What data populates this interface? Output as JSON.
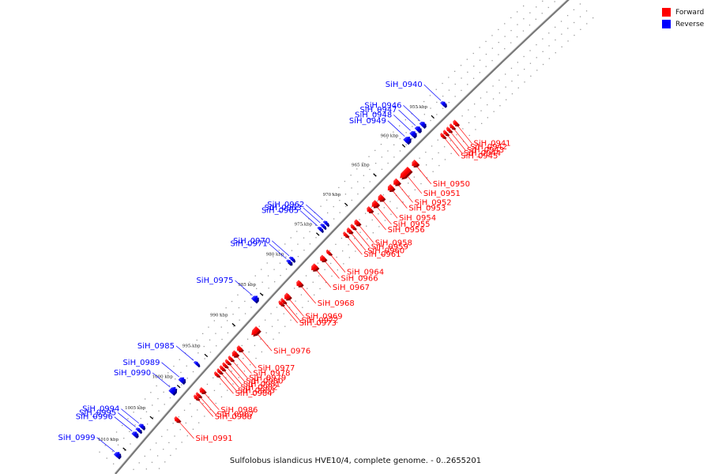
{
  "caption": "Sulfolobus islandicus HVE10/4, complete genome. - 0..2655201",
  "legend": [
    {
      "label": "Forward",
      "color": "#ff0000"
    },
    {
      "label": "Reverse",
      "color": "#0000ff"
    }
  ],
  "colors": {
    "forward": "#ff0000",
    "reverse": "#0000ff",
    "backbone": "#777777"
  },
  "scale": {
    "start_kbp": 932,
    "end_kbp": 1013
  },
  "ticks": [
    {
      "kbp": 955,
      "label": "955 kbp"
    },
    {
      "kbp": 960,
      "label": "960 kbp"
    },
    {
      "kbp": 965,
      "label": "965 kbp"
    },
    {
      "kbp": 970,
      "label": "970 kbp"
    },
    {
      "kbp": 975,
      "label": "975 kbp"
    },
    {
      "kbp": 980,
      "label": "980 kbp"
    },
    {
      "kbp": 985,
      "label": "985 kbp"
    },
    {
      "kbp": 990,
      "label": "990 kbp"
    },
    {
      "kbp": 995,
      "label": "995 kbp"
    },
    {
      "kbp": 1000,
      "label": "1000 kbp"
    },
    {
      "kbp": 1005,
      "label": "1005 kbp"
    },
    {
      "kbp": 1010,
      "label": "1010 kbp"
    }
  ],
  "genes": [
    {
      "name": "SiH_0940",
      "strand": "reverse",
      "start_kbp": 952.6,
      "end_kbp": 953.2
    },
    {
      "name": "SiH_0941",
      "strand": "forward",
      "start_kbp": 953.3,
      "end_kbp": 953.9
    },
    {
      "name": "SiH_0942",
      "strand": "forward",
      "start_kbp": 954.0,
      "end_kbp": 954.4
    },
    {
      "name": "SiH_0943",
      "strand": "forward",
      "start_kbp": 954.5,
      "end_kbp": 955.0
    },
    {
      "name": "SiH_0944",
      "strand": "forward",
      "start_kbp": 955.1,
      "end_kbp": 955.5
    },
    {
      "name": "SiH_0945",
      "strand": "forward",
      "start_kbp": 955.6,
      "end_kbp": 956.0
    },
    {
      "name": "SiH_0946",
      "strand": "reverse",
      "start_kbp": 956.1,
      "end_kbp": 956.8
    },
    {
      "name": "SiH_0947",
      "strand": "reverse",
      "start_kbp": 956.9,
      "end_kbp": 957.6
    },
    {
      "name": "SiH_0948",
      "strand": "reverse",
      "start_kbp": 957.7,
      "end_kbp": 958.5
    },
    {
      "name": "SiH_0949",
      "strand": "reverse",
      "start_kbp": 958.6,
      "end_kbp": 959.6
    },
    {
      "name": "SiH_0950",
      "strand": "forward",
      "start_kbp": 960.2,
      "end_kbp": 961.1
    },
    {
      "name": "SiH_0951",
      "strand": "forward",
      "start_kbp": 961.3,
      "end_kbp": 963.3
    },
    {
      "name": "SiH_0952",
      "strand": "forward",
      "start_kbp": 963.4,
      "end_kbp": 964.3
    },
    {
      "name": "SiH_0953",
      "strand": "forward",
      "start_kbp": 964.4,
      "end_kbp": 965.3
    },
    {
      "name": "SiH_0954",
      "strand": "forward",
      "start_kbp": 966.1,
      "end_kbp": 967.0
    },
    {
      "name": "SiH_0955",
      "strand": "forward",
      "start_kbp": 967.1,
      "end_kbp": 968.1
    },
    {
      "name": "SiH_0956",
      "strand": "forward",
      "start_kbp": 968.2,
      "end_kbp": 968.9
    },
    {
      "name": "SiH_0958",
      "strand": "forward",
      "start_kbp": 970.4,
      "end_kbp": 971.1
    },
    {
      "name": "SiH_0959",
      "strand": "forward",
      "start_kbp": 971.2,
      "end_kbp": 971.7
    },
    {
      "name": "SiH_0960",
      "strand": "forward",
      "start_kbp": 971.8,
      "end_kbp": 972.4
    },
    {
      "name": "SiH_0961",
      "strand": "forward",
      "start_kbp": 972.5,
      "end_kbp": 973.0
    },
    {
      "name": "SiH_0962",
      "strand": "reverse",
      "start_kbp": 973.1,
      "end_kbp": 973.5
    },
    {
      "name": "SiH_0963",
      "strand": "reverse",
      "start_kbp": 973.6,
      "end_kbp": 974.0
    },
    {
      "name": "SiH_0965",
      "strand": "reverse",
      "start_kbp": 974.1,
      "end_kbp": 974.5
    },
    {
      "name": "SiH_0964",
      "strand": "forward",
      "start_kbp": 975.6,
      "end_kbp": 975.9
    },
    {
      "name": "SiH_0966",
      "strand": "forward",
      "start_kbp": 976.4,
      "end_kbp": 977.2
    },
    {
      "name": "SiH_0967",
      "strand": "forward",
      "start_kbp": 977.8,
      "end_kbp": 978.8
    },
    {
      "name": "SiH_0970",
      "strand": "reverse",
      "start_kbp": 979.1,
      "end_kbp": 979.5
    },
    {
      "name": "SiH_0971",
      "strand": "reverse",
      "start_kbp": 979.6,
      "end_kbp": 980.0
    },
    {
      "name": "SiH_0968",
      "strand": "forward",
      "start_kbp": 980.6,
      "end_kbp": 981.4
    },
    {
      "name": "SiH_0969",
      "strand": "forward",
      "start_kbp": 982.7,
      "end_kbp": 983.6
    },
    {
      "name": "SiH_0972",
      "strand": "forward",
      "start_kbp": 983.7,
      "end_kbp": 984.0
    },
    {
      "name": "SiH_0973",
      "strand": "forward",
      "start_kbp": 984.1,
      "end_kbp": 984.4
    },
    {
      "name": "SiH_0975",
      "strand": "reverse",
      "start_kbp": 985.4,
      "end_kbp": 986.3
    },
    {
      "name": "SiH_0976",
      "strand": "forward",
      "start_kbp": 988.2,
      "end_kbp": 989.6
    },
    {
      "name": "SiH_0977",
      "strand": "forward",
      "start_kbp": 991.4,
      "end_kbp": 992.1
    },
    {
      "name": "SiH_0978",
      "strand": "forward",
      "start_kbp": 992.2,
      "end_kbp": 993.0
    },
    {
      "name": "SiH_0979",
      "strand": "forward",
      "start_kbp": 993.1,
      "end_kbp": 993.6
    },
    {
      "name": "SiH_0980",
      "strand": "forward",
      "start_kbp": 993.7,
      "end_kbp": 994.1
    },
    {
      "name": "SiH_0981",
      "strand": "forward",
      "start_kbp": 994.2,
      "end_kbp": 994.6
    },
    {
      "name": "SiH_0982",
      "strand": "forward",
      "start_kbp": 994.7,
      "end_kbp": 995.1
    },
    {
      "name": "SiH_0983",
      "strand": "forward",
      "start_kbp": 995.2,
      "end_kbp": 995.6
    },
    {
      "name": "SiH_0984",
      "strand": "forward",
      "start_kbp": 995.7,
      "end_kbp": 996.1
    },
    {
      "name": "SiH_0985",
      "strand": "reverse",
      "start_kbp": 996.3,
      "end_kbp": 996.6
    },
    {
      "name": "SiH_0986",
      "strand": "forward",
      "start_kbp": 998.2,
      "end_kbp": 998.9
    },
    {
      "name": "SiH_0987",
      "strand": "forward",
      "start_kbp": 999.1,
      "end_kbp": 999.4
    },
    {
      "name": "SiH_0988",
      "strand": "forward",
      "start_kbp": 999.5,
      "end_kbp": 999.8
    },
    {
      "name": "SiH_0989",
      "strand": "reverse",
      "start_kbp": 998.7,
      "end_kbp": 999.5
    },
    {
      "name": "SiH_0990",
      "strand": "reverse",
      "start_kbp": 1000.2,
      "end_kbp": 1001.3
    },
    {
      "name": "SiH_0991",
      "strand": "forward",
      "start_kbp": 1002.9,
      "end_kbp": 1003.5
    },
    {
      "name": "SiH_0994",
      "strand": "reverse",
      "start_kbp": 1006.2,
      "end_kbp": 1006.8
    },
    {
      "name": "SiH_0995",
      "strand": "reverse",
      "start_kbp": 1006.9,
      "end_kbp": 1007.3
    },
    {
      "name": "SiH_0996",
      "strand": "reverse",
      "start_kbp": 1007.4,
      "end_kbp": 1008.1
    },
    {
      "name": "SiH_0999",
      "strand": "reverse",
      "start_kbp": 1010.6,
      "end_kbp": 1011.4
    }
  ]
}
